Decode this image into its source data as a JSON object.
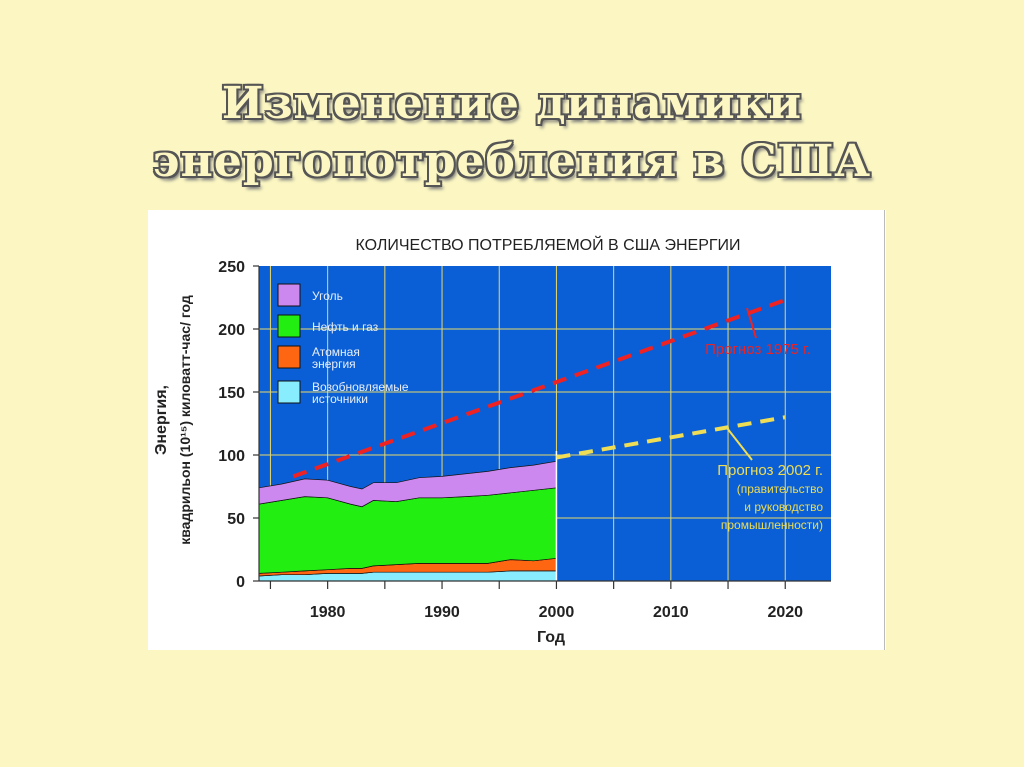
{
  "slide": {
    "title_line1": "Изменение динамики",
    "title_line2": "энергопотребления в США"
  },
  "colors": {
    "background": "#FBF6C2",
    "plot_background": "#0A5FD6",
    "coal": "#CC88EE",
    "oil_gas": "#22EE11",
    "nuclear": "#FF6611",
    "renewables": "#88EEFF",
    "forecast_1975": "#EE2222",
    "forecast_2002": "#EEDD55"
  },
  "chart_data": {
    "type": "area",
    "title": "КОЛИЧЕСТВО ПОТРЕБЛЯЕМОЙ В США ЭНЕРГИИ",
    "ylabel_line1": "Энергия,",
    "ylabel_line2": "квадрильон (10¹⁵) киловатт-час/ год",
    "xlabel": "Год",
    "xlim": [
      1974,
      2024
    ],
    "ylim": [
      0,
      250
    ],
    "xticks": [
      "1980",
      "1990",
      "2000",
      "2010",
      "2020"
    ],
    "xtick_values": [
      1980,
      1990,
      2000,
      2010,
      2020
    ],
    "yticks": [
      "0",
      "50",
      "100",
      "150",
      "200",
      "250"
    ],
    "ytick_values": [
      0,
      50,
      100,
      150,
      200,
      250
    ],
    "grid": true,
    "legend_position": "top-left",
    "legend": [
      {
        "label": "Уголь",
        "color_key": "coal"
      },
      {
        "label": "Нефть и газ",
        "color_key": "oil_gas"
      },
      {
        "label": "Атомная энергия",
        "color_key": "nuclear"
      },
      {
        "label": "Возобновляемые источники",
        "color_key": "renewables"
      }
    ],
    "x": [
      1974,
      1976,
      1978,
      1980,
      1982,
      1983,
      1984,
      1986,
      1988,
      1990,
      1992,
      1994,
      1996,
      1998,
      2000
    ],
    "series": [
      {
        "name": "Возобновляемые источники",
        "color_key": "renewables",
        "values": [
          4,
          5,
          5,
          6,
          6,
          6,
          7,
          7,
          7,
          7,
          7,
          7,
          8,
          8,
          8
        ]
      },
      {
        "name": "Атомная энергия",
        "color_key": "nuclear",
        "values": [
          2,
          2,
          3,
          3,
          4,
          4,
          5,
          6,
          7,
          7,
          7,
          7,
          9,
          8,
          10
        ]
      },
      {
        "name": "Нефть и газ",
        "color_key": "oil_gas",
        "values": [
          55,
          57,
          59,
          57,
          51,
          49,
          52,
          50,
          52,
          52,
          53,
          54,
          53,
          56,
          56
        ]
      },
      {
        "name": "Уголь",
        "color_key": "coal",
        "values": [
          13,
          13,
          14,
          14,
          14,
          14,
          14,
          15,
          16,
          17,
          18,
          19,
          20,
          20,
          21
        ]
      }
    ],
    "forecasts": [
      {
        "name": "Прогноз 1975 г.",
        "color_key": "forecast_1975",
        "x": [
          1977,
          2020
        ],
        "y": [
          83,
          223
        ],
        "label_lines": [
          "Прогноз 1975 г."
        ]
      },
      {
        "name": "Прогноз 2002 г.",
        "color_key": "forecast_2002",
        "x": [
          2000,
          2020
        ],
        "y": [
          98,
          130
        ],
        "label_lines": [
          "Прогноз 2002 г.",
          "(правительство",
          "и руководство",
          "промышленности)"
        ]
      }
    ]
  }
}
